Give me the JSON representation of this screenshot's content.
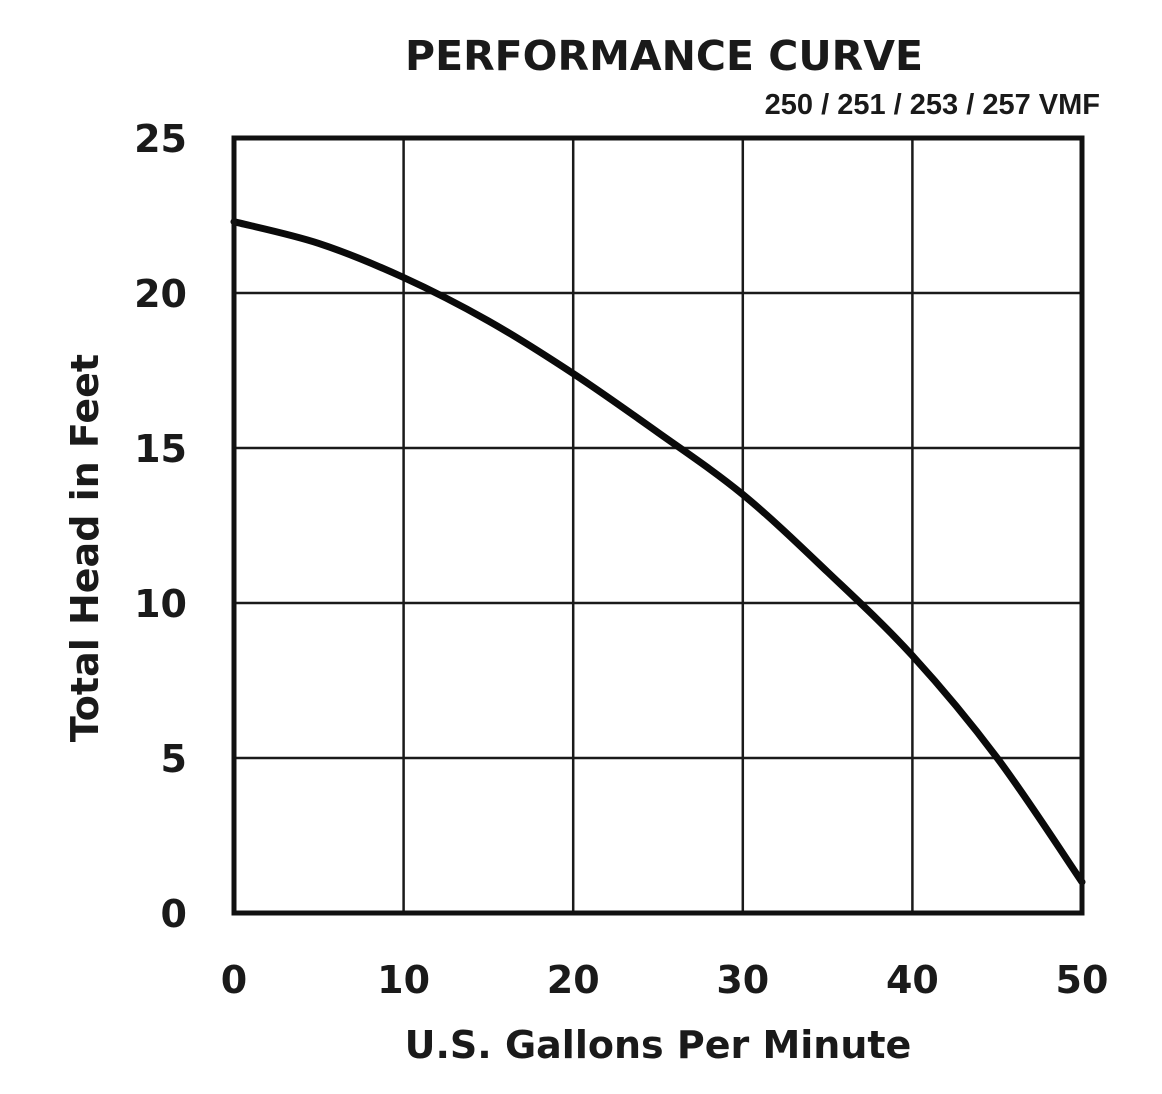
{
  "chart_data": {
    "type": "line",
    "title": "PERFORMANCE CURVE",
    "subtitle": "250 / 251 / 253 / 257 VMF",
    "xlabel": "U.S. Gallons Per Minute",
    "ylabel": "Total Head in Feet",
    "xlim": [
      0,
      50
    ],
    "ylim": [
      0,
      25
    ],
    "x_ticks": [
      "0",
      "10",
      "20",
      "30",
      "40",
      "50"
    ],
    "y_ticks": [
      "0",
      "5",
      "10",
      "15",
      "20",
      "25"
    ],
    "grid": true,
    "legend": "none",
    "colors": {
      "line": "#0a0a0a",
      "grid": "#1a1a1a",
      "background": "#ffffff"
    },
    "series": [
      {
        "x": [
          0,
          5,
          10,
          15,
          20,
          25,
          30,
          35,
          40,
          45,
          50
        ],
        "y": [
          22.3,
          21.6,
          20.5,
          19.1,
          17.4,
          15.5,
          13.5,
          11.0,
          8.3,
          5.0,
          1.0
        ]
      }
    ]
  }
}
